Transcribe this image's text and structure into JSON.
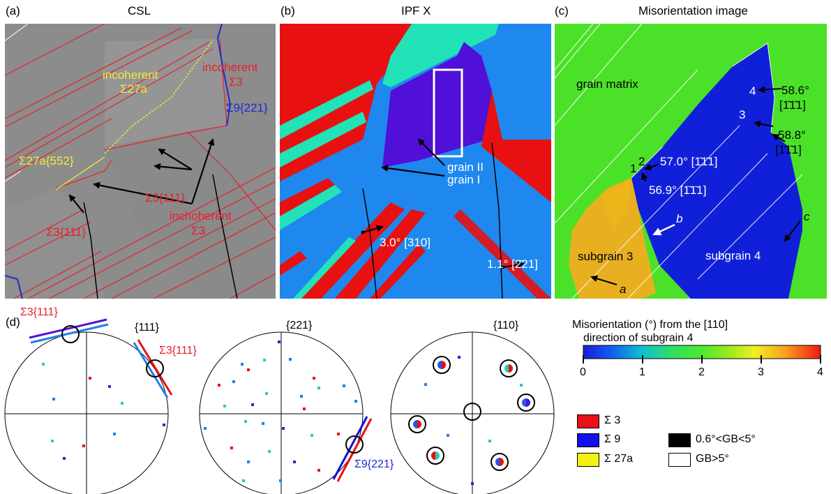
{
  "panels": {
    "a": {
      "tag": "(a)",
      "title": "CSL"
    },
    "b": {
      "tag": "(b)",
      "title": "IPF X"
    },
    "c": {
      "tag": "(c)",
      "title": "Misorientation image"
    },
    "d": {
      "tag": "(d)"
    }
  },
  "panel_a_labels": {
    "incoherent_27a_1": "incoherent",
    "incoherent_27a_2": "Σ27a",
    "incoherent_3_1": "incoherent",
    "incoherent_3_2": "Σ3",
    "sigma9": "Σ9{221}",
    "sigma27a_552": "Σ27a{552}",
    "sigma3_111_center": "Σ3{111}",
    "inchoherent_1": "inchoherent",
    "inchoherent_2": "Σ3",
    "sigma3_111_left": "Σ3{111}"
  },
  "panel_b_labels": {
    "grain2": "grain II",
    "grain1": "grain I",
    "rot1": "3.0° [310]",
    "rot2": "1.1° [2̄21]"
  },
  "panel_c_labels": {
    "grain_matrix": "grain matrix",
    "n4": "4",
    "n3": "3",
    "n2": "2",
    "n1": "1",
    "m4_angle": "58.6°",
    "m4_axis": "[1̄1̄1]",
    "m3_angle": "58.8°",
    "m3_axis": "[1̄1̄1]",
    "m2": "57.0° [1̄1̄1]",
    "m1": "56.9° [1̄1̄1]",
    "b": "b",
    "c": "c",
    "a": "a",
    "subgrain3": "subgrain 3",
    "subgrain4": "subgrain 4"
  },
  "pole_figures": {
    "pf1_title": "{111}",
    "pf2_title": "{221}",
    "pf3_title": "{110}",
    "pf1_trace1": "Σ3{111}",
    "pf1_trace2": "Σ3{111}",
    "pf2_trace": "Σ9{221}"
  },
  "colorbar": {
    "title_1": "Misorientation (°) from the [110]",
    "title_2": "direction of subgrain 4",
    "ticks": [
      "0",
      "1",
      "2",
      "3",
      "4"
    ],
    "range": [
      0,
      4
    ]
  },
  "legend": {
    "items": [
      {
        "label": "Σ 3",
        "color": "#e8101a"
      },
      {
        "label": "Σ 9",
        "color": "#1010e8"
      },
      {
        "label": "Σ 27a",
        "color": "#f6f010"
      },
      {
        "label": "0.6°<GB<5°",
        "color": "#000000"
      },
      {
        "label": "GB>5°",
        "color": "#ffffff"
      }
    ]
  }
}
